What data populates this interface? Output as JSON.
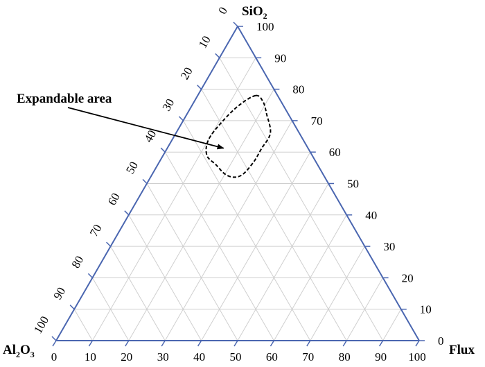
{
  "chart_data": {
    "type": "ternary",
    "components": {
      "top": {
        "name": "SiO",
        "subscript": "2"
      },
      "left": {
        "name": "Al",
        "sub1": "2",
        "mid": "O",
        "sub2": "3"
      },
      "right": {
        "name": "Flux"
      }
    },
    "ticks": [
      0,
      10,
      20,
      30,
      40,
      50,
      60,
      70,
      80,
      90,
      100
    ],
    "tick_labels": [
      "0",
      "10",
      "20",
      "30",
      "40",
      "50",
      "60",
      "70",
      "80",
      "90",
      "100"
    ],
    "axis_range": [
      0,
      100
    ],
    "grid": true,
    "grid_step": 10,
    "region": {
      "label": "Expandable area",
      "style": "dashed",
      "points": [
        {
          "sio2": 78,
          "flux": 16
        },
        {
          "sio2": 76,
          "flux": 19
        },
        {
          "sio2": 72,
          "flux": 22
        },
        {
          "sio2": 66,
          "flux": 26
        },
        {
          "sio2": 61,
          "flux": 26
        },
        {
          "sio2": 57,
          "flux": 26
        },
        {
          "sio2": 53,
          "flux": 25
        },
        {
          "sio2": 52,
          "flux": 23
        },
        {
          "sio2": 53,
          "flux": 20
        },
        {
          "sio2": 56,
          "flux": 16
        },
        {
          "sio2": 59,
          "flux": 12
        },
        {
          "sio2": 64,
          "flux": 10
        },
        {
          "sio2": 70,
          "flux": 11
        },
        {
          "sio2": 75,
          "flux": 13
        }
      ],
      "arrow_target": {
        "sio2": 61,
        "flux": 16
      }
    },
    "colors": {
      "axis": "#4a66b0",
      "grid": "#cfcfcf",
      "region": "#000000"
    }
  }
}
